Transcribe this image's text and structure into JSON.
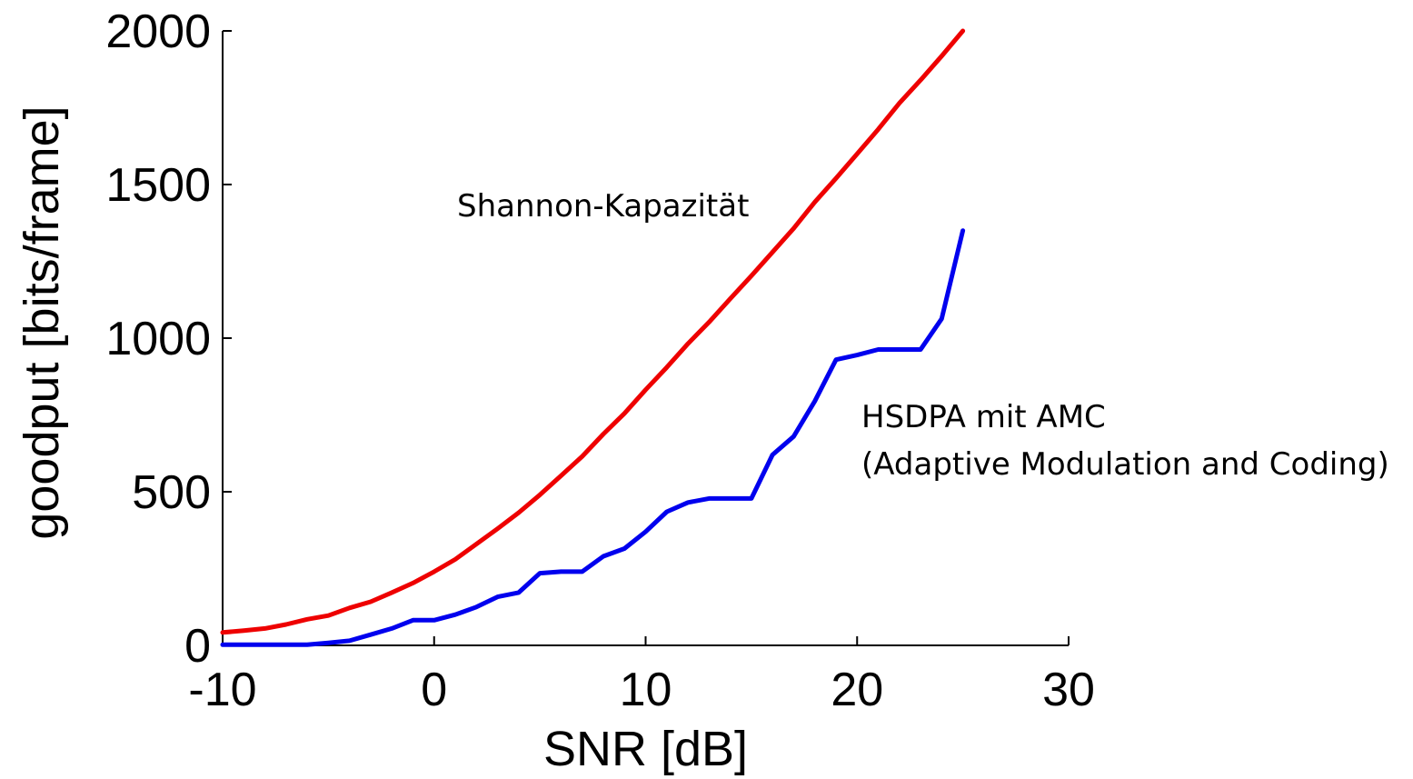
{
  "chart_data": {
    "type": "line",
    "xlabel": "SNR [dB]",
    "ylabel": "goodput [bits/frame]",
    "xlim": [
      -10,
      30
    ],
    "ylim": [
      0,
      2000
    ],
    "xticks": [
      -10,
      0,
      10,
      20,
      30
    ],
    "yticks": [
      0,
      500,
      1000,
      1500,
      2000
    ],
    "grid": false,
    "series": [
      {
        "color": "#ee0000",
        "x": [
          -10,
          -9,
          -8,
          -7,
          -6,
          -5,
          -4,
          -3,
          -2,
          -1,
          0,
          1,
          2,
          3,
          4,
          5,
          6,
          7,
          8,
          9,
          10,
          11,
          12,
          13,
          14,
          15,
          16,
          17,
          18,
          19,
          20,
          21,
          22,
          23,
          24,
          25
        ],
        "y": [
          42,
          48,
          55,
          68,
          85,
          97,
          122,
          142,
          172,
          203,
          240,
          280,
          330,
          380,
          432,
          490,
          552,
          615,
          688,
          755,
          832,
          905,
          982,
          1052,
          1128,
          1203,
          1280,
          1357,
          1443,
          1520,
          1600,
          1680,
          1765,
          1840,
          1918,
          2000
        ]
      },
      {
        "color": "#0000ee",
        "x": [
          -10,
          -9,
          -8,
          -7,
          -6,
          -5,
          -4,
          -3,
          -2,
          -1,
          0,
          1,
          2,
          3,
          4,
          5,
          6,
          7,
          8,
          9,
          10,
          11,
          12,
          13,
          14,
          15,
          16,
          17,
          18,
          19,
          20,
          21,
          22,
          23,
          24,
          25
        ],
        "y": [
          2,
          2,
          2,
          2,
          2,
          8,
          15,
          35,
          55,
          82,
          82,
          100,
          125,
          158,
          172,
          235,
          240,
          240,
          290,
          315,
          370,
          435,
          465,
          478,
          478,
          478,
          620,
          680,
          795,
          930,
          945,
          963,
          963,
          963,
          1063,
          1350
        ]
      }
    ],
    "annotations": [
      {
        "lines": [
          "Shannon-Kapazität"
        ]
      },
      {
        "lines": [
          "HSDPA mit AMC",
          "(Adaptive Modulation and Coding)"
        ]
      }
    ]
  }
}
